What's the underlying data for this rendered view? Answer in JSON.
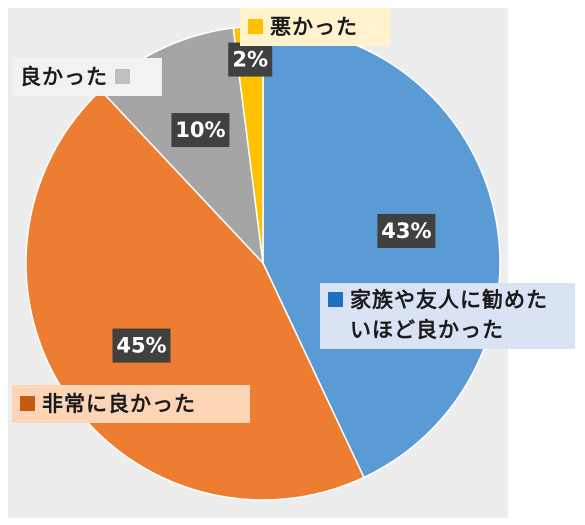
{
  "chart_data": {
    "type": "pie",
    "title": "",
    "start_angle_deg": 0,
    "direction": "clockwise",
    "slices": [
      {
        "label": "家族や友人に勧めたいほど良かった",
        "value": 43,
        "display": "43%",
        "color": "#5b9bd5"
      },
      {
        "label": "非常に良かった",
        "value": 45,
        "display": "45%",
        "color": "#ed7d31"
      },
      {
        "label": "良かった",
        "value": 10,
        "display": "10%",
        "color": "#a5a5a5"
      },
      {
        "label": "悪かった",
        "value": 2,
        "display": "2%",
        "color": "#ffc000"
      }
    ],
    "category_label_backgrounds": [
      "#dae3f3",
      "#fbd5b5",
      "#f2f2f2",
      "#fff2cc"
    ],
    "category_swatch_colors": [
      "#1f6fc2",
      "#c55a11",
      "#bfbfbf",
      "#ffc000"
    ],
    "percent_label_background": "#404040"
  }
}
